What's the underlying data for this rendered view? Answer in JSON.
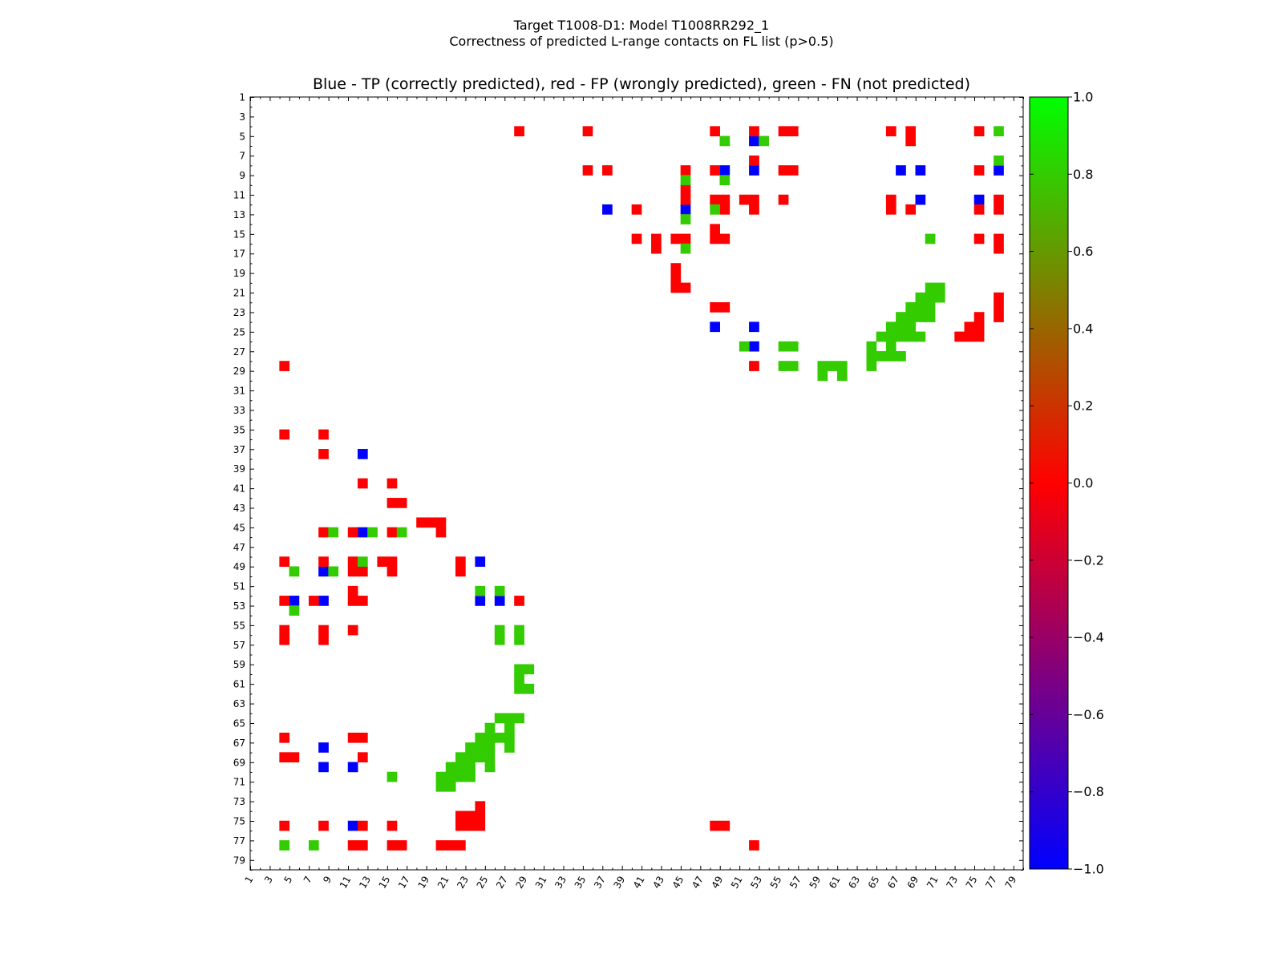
{
  "chart_data": {
    "type": "heatmap",
    "title": "Target T1008-D1: Model T1008RR292_1",
    "subtitle": "Correctness of predicted L-range contacts on FL list (p>0.5)",
    "plot_title": "Blue - TP (correctly predicted), red - FP (wrongly predicted), green - FN (not predicted)",
    "x_ticks": [
      "1",
      "3",
      "5",
      "7",
      "9",
      "11",
      "13",
      "15",
      "17",
      "19",
      "21",
      "23",
      "25",
      "27",
      "29",
      "31",
      "33",
      "35",
      "37",
      "39",
      "41",
      "43",
      "45",
      "47",
      "49",
      "51",
      "53",
      "55",
      "57",
      "59",
      "61",
      "63",
      "65",
      "67",
      "69",
      "71",
      "73",
      "75",
      "77",
      "79"
    ],
    "y_ticks": [
      "1",
      "3",
      "5",
      "7",
      "9",
      "11",
      "13",
      "15",
      "17",
      "19",
      "21",
      "23",
      "25",
      "27",
      "29",
      "31",
      "33",
      "35",
      "37",
      "39",
      "41",
      "43",
      "45",
      "47",
      "49",
      "51",
      "53",
      "55",
      "57",
      "59",
      "61",
      "63",
      "65",
      "67",
      "69",
      "71",
      "73",
      "75",
      "77",
      "79"
    ],
    "xlim": [
      1,
      80
    ],
    "ylim": [
      1,
      80
    ],
    "colorbar": {
      "range": [
        -1.0,
        1.0
      ],
      "ticks": [
        "1.0",
        "0.8",
        "0.6",
        "0.4",
        "0.2",
        "0.0",
        "−0.2",
        "−0.4",
        "−0.6",
        "−0.8",
        "−1.0"
      ],
      "colormap": [
        "#0000ff",
        "#ff0000",
        "#00ff00"
      ]
    },
    "colors": {
      "tp": "#0000ff",
      "fp": "#ff0000",
      "fn": "#33cc00"
    },
    "tp": [
      [
        5,
        52
      ],
      [
        8,
        49
      ],
      [
        8,
        52
      ],
      [
        8,
        67
      ],
      [
        8,
        69
      ],
      [
        8,
        77
      ],
      [
        11,
        69
      ],
      [
        11,
        75
      ],
      [
        12,
        37
      ],
      [
        12,
        45
      ],
      [
        24,
        48
      ],
      [
        24,
        52
      ],
      [
        26,
        52
      ],
      [
        37,
        12
      ],
      [
        45,
        12
      ],
      [
        48,
        24
      ],
      [
        49,
        8
      ],
      [
        52,
        5
      ],
      [
        52,
        8
      ],
      [
        52,
        24
      ],
      [
        52,
        26
      ],
      [
        67,
        8
      ],
      [
        69,
        8
      ],
      [
        69,
        11
      ],
      [
        75,
        11
      ]
    ],
    "fp": [
      [
        4,
        28
      ],
      [
        4,
        35
      ],
      [
        4,
        48
      ],
      [
        4,
        52
      ],
      [
        4,
        55
      ],
      [
        4,
        56
      ],
      [
        4,
        66
      ],
      [
        4,
        68
      ],
      [
        4,
        75
      ],
      [
        5,
        68
      ],
      [
        7,
        52
      ],
      [
        8,
        35
      ],
      [
        8,
        37
      ],
      [
        8,
        45
      ],
      [
        8,
        48
      ],
      [
        8,
        55
      ],
      [
        8,
        56
      ],
      [
        8,
        75
      ],
      [
        10,
        45
      ],
      [
        11,
        45
      ],
      [
        11,
        48
      ],
      [
        11,
        49
      ],
      [
        11,
        51
      ],
      [
        11,
        52
      ],
      [
        11,
        55
      ],
      [
        11,
        66
      ],
      [
        11,
        77
      ],
      [
        12,
        40
      ],
      [
        12,
        49
      ],
      [
        12,
        52
      ],
      [
        12,
        66
      ],
      [
        12,
        68
      ],
      [
        12,
        75
      ],
      [
        12,
        77
      ],
      [
        14,
        48
      ],
      [
        15,
        40
      ],
      [
        15,
        42
      ],
      [
        15,
        44
      ],
      [
        15,
        45
      ],
      [
        15,
        48
      ],
      [
        15,
        49
      ],
      [
        15,
        75
      ],
      [
        15,
        77
      ],
      [
        16,
        42
      ],
      [
        16,
        77
      ],
      [
        18,
        44
      ],
      [
        19,
        44
      ],
      [
        20,
        44
      ],
      [
        20,
        45
      ],
      [
        21,
        77
      ],
      [
        22,
        48
      ],
      [
        22,
        49
      ],
      [
        22,
        77
      ],
      [
        23,
        75
      ],
      [
        23,
        77
      ],
      [
        24,
        74
      ],
      [
        24,
        75
      ],
      [
        25,
        73
      ],
      [
        25,
        74
      ],
      [
        25,
        75
      ],
      [
        28,
        4
      ],
      [
        28,
        52
      ],
      [
        35,
        4
      ],
      [
        35,
        8
      ],
      [
        37,
        8
      ],
      [
        40,
        12
      ],
      [
        40,
        15
      ],
      [
        42,
        15
      ],
      [
        42,
        16
      ],
      [
        44,
        18
      ],
      [
        44,
        19
      ],
      [
        44,
        20
      ],
      [
        45,
        8
      ],
      [
        45,
        11
      ],
      [
        45,
        15
      ],
      [
        45,
        20
      ],
      [
        48,
        4
      ],
      [
        48,
        8
      ],
      [
        48,
        11
      ],
      [
        48,
        14
      ],
      [
        48,
        15
      ],
      [
        48,
        22
      ],
      [
        49,
        11
      ],
      [
        49,
        12
      ],
      [
        49,
        15
      ],
      [
        49,
        22
      ],
      [
        51,
        11
      ],
      [
        52,
        4
      ],
      [
        52,
        7
      ],
      [
        52,
        11
      ],
      [
        52,
        12
      ],
      [
        52,
        28
      ],
      [
        55,
        4
      ],
      [
        55,
        8
      ],
      [
        55,
        11
      ],
      [
        56,
        4
      ],
      [
        56,
        8
      ],
      [
        66,
        4
      ],
      [
        66,
        11
      ],
      [
        66,
        12
      ],
      [
        68,
        4
      ],
      [
        68,
        5
      ],
      [
        68,
        12
      ],
      [
        73,
        24
      ],
      [
        74,
        22
      ],
      [
        74,
        23
      ],
      [
        74,
        24
      ],
      [
        75,
        4
      ],
      [
        75,
        8
      ],
      [
        75,
        12
      ],
      [
        75,
        15
      ],
      [
        75,
        22
      ],
      [
        75,
        23
      ],
      [
        75,
        24
      ],
      [
        75,
        48
      ],
      [
        75,
        49
      ],
      [
        77,
        11
      ],
      [
        77,
        12
      ],
      [
        77,
        15
      ],
      [
        77,
        16
      ],
      [
        77,
        20
      ],
      [
        77,
        21
      ],
      [
        77,
        22
      ],
      [
        77,
        52
      ]
    ],
    "fn": [
      [
        4,
        77
      ],
      [
        5,
        49
      ],
      [
        5,
        53
      ],
      [
        7,
        77
      ],
      [
        9,
        45
      ],
      [
        9,
        49
      ],
      [
        12,
        48
      ],
      [
        13,
        45
      ],
      [
        15,
        70
      ],
      [
        16,
        45
      ],
      [
        20,
        70
      ],
      [
        20,
        71
      ],
      [
        21,
        69
      ],
      [
        21,
        70
      ],
      [
        21,
        71
      ],
      [
        22,
        68
      ],
      [
        22,
        69
      ],
      [
        22,
        70
      ],
      [
        23,
        67
      ],
      [
        23,
        68
      ],
      [
        23,
        69
      ],
      [
        23,
        70
      ],
      [
        24,
        66
      ],
      [
        24,
        67
      ],
      [
        24,
        68
      ],
      [
        25,
        65
      ],
      [
        25,
        66
      ],
      [
        25,
        67
      ],
      [
        25,
        68
      ],
      [
        25,
        69
      ],
      [
        26,
        51
      ],
      [
        26,
        55
      ],
      [
        26,
        56
      ],
      [
        26,
        64
      ],
      [
        26,
        66
      ],
      [
        27,
        64
      ],
      [
        27,
        65
      ],
      [
        27,
        66
      ],
      [
        27,
        67
      ],
      [
        28,
        55
      ],
      [
        28,
        56
      ],
      [
        28,
        59
      ],
      [
        28,
        60
      ],
      [
        28,
        61
      ],
      [
        28,
        64
      ],
      [
        29,
        59
      ],
      [
        29,
        61
      ],
      [
        45,
        9
      ],
      [
        45,
        13
      ],
      [
        45,
        16
      ],
      [
        48,
        12
      ],
      [
        49,
        5
      ],
      [
        49,
        9
      ],
      [
        51,
        24
      ],
      [
        51,
        26
      ],
      [
        53,
        5
      ],
      [
        55,
        26
      ],
      [
        56,
        26
      ],
      [
        55,
        28
      ],
      [
        56,
        28
      ],
      [
        59,
        28
      ],
      [
        59,
        29
      ],
      [
        60,
        28
      ],
      [
        61,
        28
      ],
      [
        61,
        29
      ],
      [
        64,
        26
      ],
      [
        64,
        27
      ],
      [
        64,
        28
      ],
      [
        65,
        25
      ],
      [
        65,
        27
      ],
      [
        66,
        24
      ],
      [
        66,
        25
      ],
      [
        66,
        26
      ],
      [
        66,
        27
      ],
      [
        67,
        23
      ],
      [
        67,
        24
      ],
      [
        67,
        25
      ],
      [
        67,
        27
      ],
      [
        68,
        22
      ],
      [
        68,
        23
      ],
      [
        68,
        24
      ],
      [
        68,
        25
      ],
      [
        69,
        21
      ],
      [
        69,
        22
      ],
      [
        69,
        23
      ],
      [
        69,
        25
      ],
      [
        70,
        15
      ],
      [
        70,
        20
      ],
      [
        70,
        21
      ],
      [
        70,
        22
      ],
      [
        70,
        23
      ],
      [
        71,
        20
      ],
      [
        71,
        21
      ],
      [
        77,
        4
      ],
      [
        77,
        7
      ]
    ]
  }
}
